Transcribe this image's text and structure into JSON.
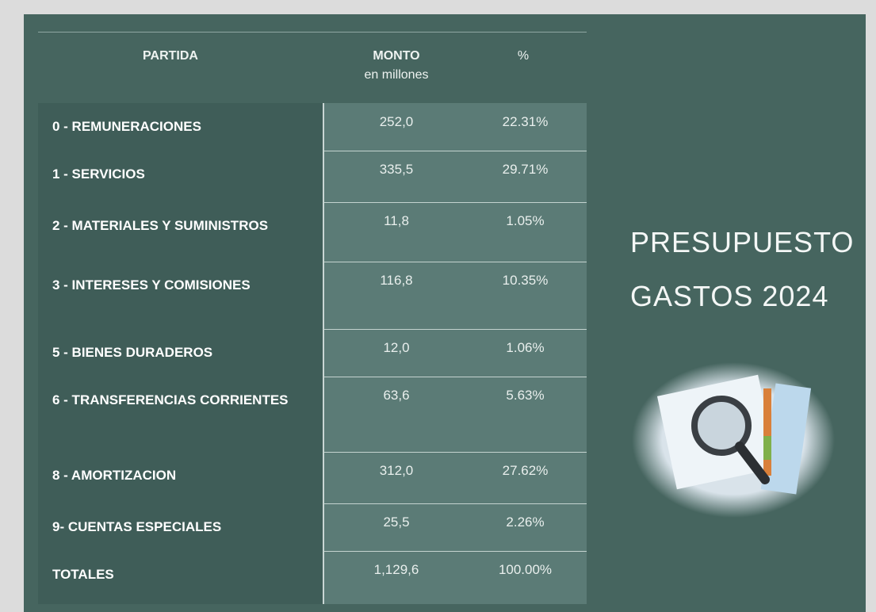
{
  "table": {
    "header": {
      "partida": "PARTIDA",
      "monto": "MONTO",
      "monto_unit": "en millones",
      "percent": "%"
    },
    "rows": [
      [
        "0 - REMUNERACIONES",
        "252,0",
        "22.31%"
      ],
      [
        "1 - SERVICIOS",
        "335,5",
        "29.71%"
      ],
      [
        "2 - MATERIALES Y SUMINISTROS",
        "11,8",
        "1.05%"
      ],
      [
        "3 - INTERESES Y COMISIONES",
        "116,8",
        "10.35%"
      ],
      [
        "5 - BIENES DURADEROS",
        "12,0",
        "1.06%"
      ],
      [
        "6 - TRANSFERENCIAS CORRIENTES",
        "63,6",
        "5.63%"
      ],
      [
        "8 - AMORTIZACION",
        "312,0",
        "27.62%"
      ],
      [
        "9- CUENTAS ESPECIALES",
        "25,5",
        "2.26%"
      ],
      [
        "TOTALES",
        "1,129,6",
        "100.00%"
      ]
    ]
  },
  "side": {
    "title_line1": "PRESUPUESTO",
    "title_line2": "GASTOS 2024"
  }
}
